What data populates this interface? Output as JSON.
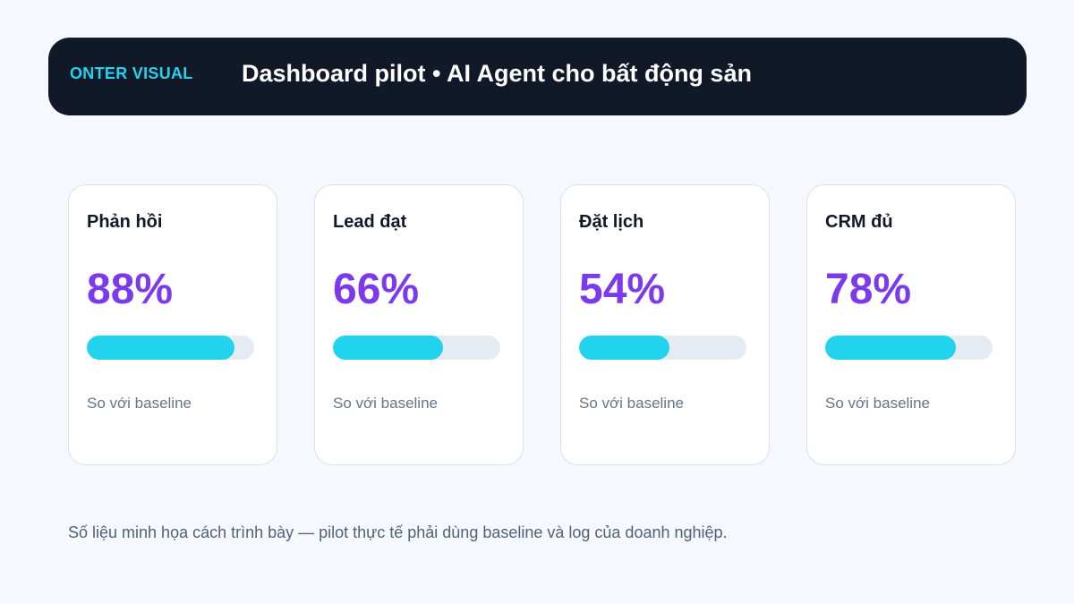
{
  "header": {
    "brand": "ONTER VISUAL",
    "title": "Dashboard pilot • AI Agent cho bất động sản"
  },
  "cards": [
    {
      "label": "Phản hồi",
      "value": "88%",
      "progress": 0.88,
      "note": "So với baseline"
    },
    {
      "label": "Lead đạt",
      "value": "66%",
      "progress": 0.66,
      "note": "So với baseline"
    },
    {
      "label": "Đặt lịch",
      "value": "54%",
      "progress": 0.54,
      "note": "So với baseline"
    },
    {
      "label": "CRM đủ",
      "value": "78%",
      "progress": 0.78,
      "note": "So với baseline"
    }
  ],
  "footnote": "Số liệu minh họa cách trình bày — pilot thực tế phải dùng baseline và log của doanh nghiệp.",
  "colors": {
    "header_bg": "#111827",
    "brand": "#22d3ee",
    "value": "#7c3aed",
    "bar_fill": "#22d3ee",
    "bar_track": "#e5ebf3"
  }
}
